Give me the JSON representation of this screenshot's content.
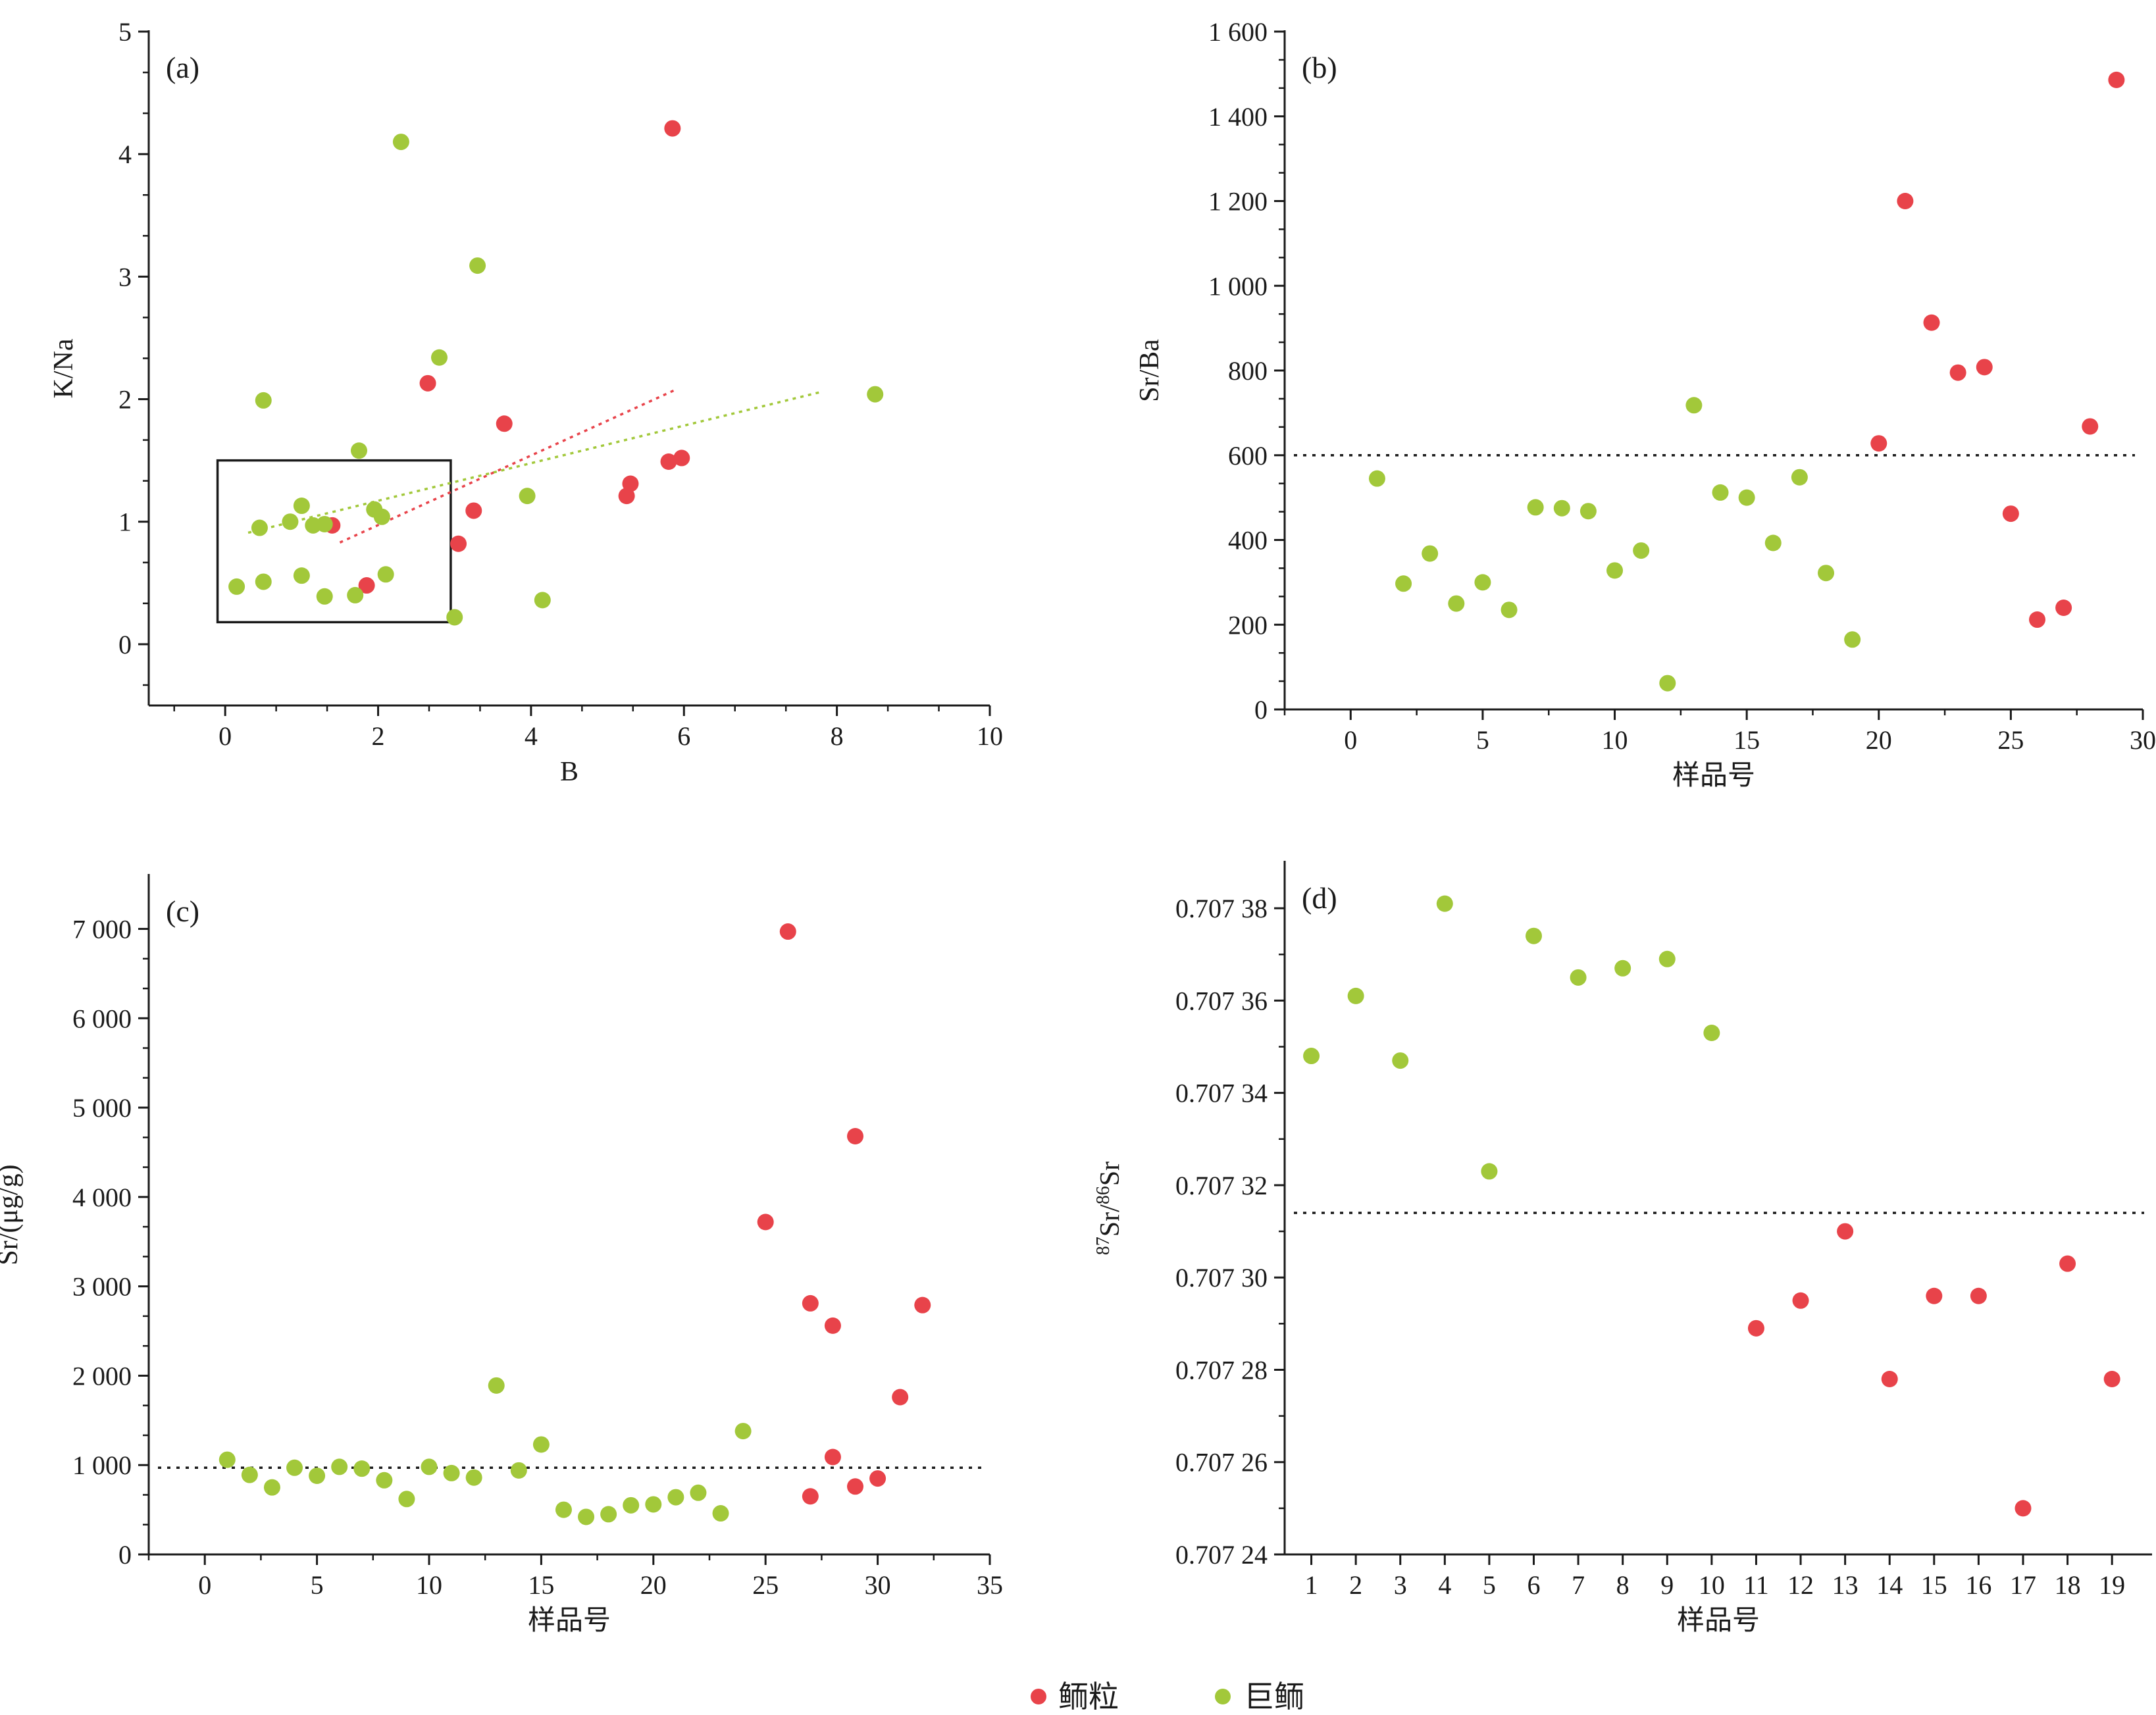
{
  "figure": {
    "colors": {
      "red": "#e8434a",
      "green": "#a2c83a",
      "axis": "#1a1a1a"
    },
    "legend": [
      {
        "label": "鲕粒",
        "color": "#e8434a"
      },
      {
        "label": "巨鲕",
        "color": "#a2c83a"
      }
    ]
  },
  "chart_data": [
    {
      "id": "a",
      "type": "scatter",
      "panel_label": "(a)",
      "xlabel": "B",
      "ylabel": "K/Na",
      "xlim": [
        -1,
        10
      ],
      "ylim": [
        -0.5,
        5
      ],
      "xticks": [
        0,
        2,
        4,
        6,
        8,
        10
      ],
      "xtick_labels": [
        "0",
        "2",
        "4",
        "6",
        "8",
        "10"
      ],
      "yticks": [
        0,
        1,
        2,
        3,
        4,
        5
      ],
      "ytick_labels": [
        "0",
        "1",
        "2",
        "3",
        "4",
        "5"
      ],
      "series": [
        {
          "color": "red",
          "points": [
            [
              5.85,
              4.21
            ],
            [
              2.65,
              2.13
            ],
            [
              3.65,
              1.8
            ],
            [
              5.97,
              1.52
            ],
            [
              5.8,
              1.49
            ],
            [
              5.3,
              1.31
            ],
            [
              5.25,
              1.21
            ],
            [
              3.25,
              1.09
            ],
            [
              1.4,
              0.97
            ],
            [
              3.05,
              0.82
            ],
            [
              1.85,
              0.48
            ]
          ]
        },
        {
          "color": "green",
          "points": [
            [
              2.3,
              4.1
            ],
            [
              3.3,
              3.09
            ],
            [
              0.5,
              1.99
            ],
            [
              2.8,
              2.34
            ],
            [
              8.5,
              2.04
            ],
            [
              1.75,
              1.58
            ],
            [
              3.95,
              1.21
            ],
            [
              1.0,
              1.13
            ],
            [
              1.95,
              1.1
            ],
            [
              2.05,
              1.04
            ],
            [
              0.85,
              1.0
            ],
            [
              1.15,
              0.97
            ],
            [
              1.3,
              0.98
            ],
            [
              0.45,
              0.95
            ],
            [
              1.0,
              0.56
            ],
            [
              2.1,
              0.57
            ],
            [
              0.5,
              0.51
            ],
            [
              0.15,
              0.47
            ],
            [
              1.3,
              0.39
            ],
            [
              1.7,
              0.4
            ],
            [
              4.15,
              0.36
            ],
            [
              3.0,
              0.22
            ]
          ]
        }
      ],
      "trendlines": [
        {
          "color": "red",
          "from": [
            1.5,
            0.83
          ],
          "to": [
            5.9,
            2.08
          ]
        },
        {
          "color": "green",
          "from": [
            0.3,
            0.91
          ],
          "to": [
            7.8,
            2.06
          ]
        }
      ],
      "box": {
        "x": [
          -0.1,
          2.95
        ],
        "y": [
          0.18,
          1.5
        ]
      }
    },
    {
      "id": "b",
      "type": "scatter",
      "panel_label": "(b)",
      "xlabel": "样品号",
      "ylabel": "Sr/Ba",
      "xlim": [
        -2.5,
        30
      ],
      "ylim": [
        0,
        1600
      ],
      "xticks": [
        0,
        5,
        10,
        15,
        20,
        25,
        30
      ],
      "xtick_labels": [
        "0",
        "5",
        "10",
        "15",
        "20",
        "25",
        "30"
      ],
      "yticks": [
        0,
        200,
        400,
        600,
        800,
        1000,
        1200,
        1400,
        1600
      ],
      "ytick_labels": [
        "0",
        "200",
        "400",
        "600",
        "800",
        "1 000",
        "1 200",
        "1 400",
        "1 600"
      ],
      "hline": 600,
      "series": [
        {
          "color": "green",
          "points": [
            [
              1,
              545
            ],
            [
              2,
              297
            ],
            [
              3,
              368
            ],
            [
              4,
              250
            ],
            [
              5,
              300
            ],
            [
              6,
              235
            ],
            [
              7,
              477
            ],
            [
              8,
              475
            ],
            [
              9,
              468
            ],
            [
              10,
              328
            ],
            [
              11,
              375
            ],
            [
              12,
              62
            ],
            [
              13,
              718
            ],
            [
              14,
              512
            ],
            [
              15,
              500
            ],
            [
              16,
              393
            ],
            [
              17,
              548
            ],
            [
              18,
              322
            ],
            [
              19,
              165
            ]
          ]
        },
        {
          "color": "red",
          "points": [
            [
              20,
              628
            ],
            [
              21,
              1200
            ],
            [
              22,
              913
            ],
            [
              23,
              795
            ],
            [
              24,
              808
            ],
            [
              25,
              462
            ],
            [
              26,
              212
            ],
            [
              27,
              240
            ],
            [
              28,
              668
            ],
            [
              29,
              1486
            ]
          ]
        }
      ]
    },
    {
      "id": "c",
      "type": "scatter",
      "panel_label": "(c)",
      "xlabel": "样品号",
      "ylabel": "Sr/(μg/g)",
      "xlim": [
        -2.5,
        35
      ],
      "ylim": [
        0,
        7600
      ],
      "xticks": [
        0,
        5,
        10,
        15,
        20,
        25,
        30,
        35
      ],
      "xtick_labels": [
        "0",
        "5",
        "10",
        "15",
        "20",
        "25",
        "30",
        "35"
      ],
      "yticks": [
        0,
        1000,
        2000,
        3000,
        4000,
        5000,
        6000,
        7000
      ],
      "ytick_labels": [
        "0",
        "1 000",
        "2 000",
        "3 000",
        "4 000",
        "5 000",
        "6 000",
        "7 000"
      ],
      "hline": 970,
      "series": [
        {
          "color": "green",
          "points": [
            [
              1,
              1060
            ],
            [
              2,
              890
            ],
            [
              3,
              750
            ],
            [
              4,
              970
            ],
            [
              5,
              880
            ],
            [
              6,
              980
            ],
            [
              7,
              960
            ],
            [
              8,
              830
            ],
            [
              9,
              620
            ],
            [
              10,
              980
            ],
            [
              11,
              910
            ],
            [
              12,
              860
            ],
            [
              13,
              1890
            ],
            [
              14,
              940
            ],
            [
              15,
              1230
            ],
            [
              16,
              500
            ],
            [
              17,
              420
            ],
            [
              18,
              450
            ],
            [
              19,
              550
            ],
            [
              20,
              560
            ],
            [
              21,
              640
            ],
            [
              22,
              690
            ],
            [
              23,
              460
            ],
            [
              24,
              1380
            ]
          ]
        },
        {
          "color": "red",
          "points": [
            [
              25,
              3720
            ],
            [
              26,
              6970
            ],
            [
              27,
              2810
            ],
            [
              27,
              650
            ],
            [
              28,
              2560
            ],
            [
              28,
              1090
            ],
            [
              29,
              4680
            ],
            [
              29,
              760
            ],
            [
              30,
              850
            ],
            [
              31,
              1760
            ],
            [
              32,
              2790
            ]
          ]
        }
      ]
    },
    {
      "id": "d",
      "type": "scatter",
      "panel_label": "(d)",
      "xlabel": "样品号",
      "ylabel": "87Sr/86Sr",
      "ylabel_parts": [
        "87",
        "Sr/",
        "86",
        "Sr"
      ],
      "xlim": [
        0.4,
        19.9
      ],
      "ylim": [
        0.70724,
        0.70739
      ],
      "xticks": [
        1,
        2,
        3,
        4,
        5,
        6,
        7,
        8,
        9,
        10,
        11,
        12,
        13,
        14,
        15,
        16,
        17,
        18,
        19
      ],
      "xtick_labels": [
        "1",
        "2",
        "3",
        "4",
        "5",
        "6",
        "7",
        "8",
        "9",
        "10",
        "11",
        "12",
        "13",
        "14",
        "15",
        "16",
        "17",
        "18",
        "19"
      ],
      "yticks": [
        0.70724,
        0.70726,
        0.70728,
        0.7073,
        0.70732,
        0.70734,
        0.70736,
        0.70738
      ],
      "ytick_labels": [
        "0.707 24",
        "0.707 26",
        "0.707 28",
        "0.707 30",
        "0.707 32",
        "0.707 34",
        "0.707 36",
        "0.707 38"
      ],
      "hline": 0.707314,
      "series": [
        {
          "color": "green",
          "points": [
            [
              1,
              0.707348
            ],
            [
              2,
              0.707361
            ],
            [
              3,
              0.707347
            ],
            [
              4,
              0.707381
            ],
            [
              5,
              0.707323
            ],
            [
              6,
              0.707374
            ],
            [
              7,
              0.707365
            ],
            [
              8,
              0.707367
            ],
            [
              9,
              0.707369
            ],
            [
              10,
              0.707353
            ]
          ]
        },
        {
          "color": "red",
          "points": [
            [
              11,
              0.707289
            ],
            [
              12,
              0.707295
            ],
            [
              13,
              0.70731
            ],
            [
              14,
              0.707278
            ],
            [
              15,
              0.707296
            ],
            [
              16,
              0.707296
            ],
            [
              17,
              0.70725
            ],
            [
              18,
              0.707303
            ],
            [
              19,
              0.707278
            ]
          ]
        }
      ]
    }
  ]
}
